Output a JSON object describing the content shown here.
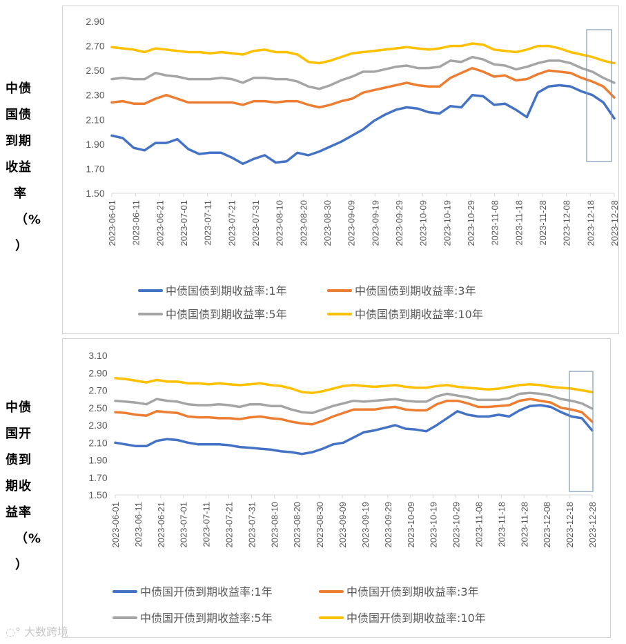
{
  "chart_data": [
    {
      "type": "line",
      "ylabel_lines": [
        "中债",
        "国债",
        "到期",
        "收益",
        "率",
        "（%",
        "）"
      ],
      "ylim": [
        1.5,
        2.9
      ],
      "yticks": [
        "2.90",
        "2.70",
        "2.50",
        "2.30",
        "2.10",
        "1.90",
        "1.70",
        "1.50"
      ],
      "xticks": [
        "2023-06-01",
        "2023-06-11",
        "2023-06-21",
        "2023-07-01",
        "2023-07-11",
        "2023-07-21",
        "2023-07-31",
        "2023-08-10",
        "2023-08-20",
        "2023-08-30",
        "2023-09-09",
        "2023-09-19",
        "2023-09-29",
        "2023-10-09",
        "2023-10-19",
        "2023-10-29",
        "2023-11-08",
        "2023-11-18",
        "2023-11-28",
        "2023-12-08",
        "2023-12-18",
        "2023-12-28"
      ],
      "series": [
        {
          "name": "中债国债到期收益率:1年",
          "color": "#4472C4",
          "values": [
            1.97,
            1.95,
            1.87,
            1.85,
            1.91,
            1.91,
            1.94,
            1.86,
            1.82,
            1.83,
            1.83,
            1.79,
            1.74,
            1.78,
            1.81,
            1.75,
            1.76,
            1.83,
            1.81,
            1.84,
            1.88,
            1.92,
            1.97,
            2.02,
            2.09,
            2.14,
            2.18,
            2.2,
            2.19,
            2.16,
            2.15,
            2.21,
            2.2,
            2.3,
            2.29,
            2.22,
            2.23,
            2.18,
            2.12,
            2.32,
            2.37,
            2.38,
            2.37,
            2.33,
            2.3,
            2.24,
            2.11
          ]
        },
        {
          "name": "中债国债到期收益率:3年",
          "color": "#ED7D31",
          "values": [
            2.24,
            2.25,
            2.23,
            2.23,
            2.27,
            2.3,
            2.27,
            2.24,
            2.24,
            2.24,
            2.24,
            2.24,
            2.22,
            2.25,
            2.25,
            2.24,
            2.25,
            2.25,
            2.22,
            2.2,
            2.22,
            2.25,
            2.27,
            2.32,
            2.34,
            2.36,
            2.38,
            2.4,
            2.38,
            2.37,
            2.37,
            2.44,
            2.48,
            2.52,
            2.49,
            2.45,
            2.46,
            2.42,
            2.43,
            2.47,
            2.5,
            2.49,
            2.48,
            2.44,
            2.41,
            2.37,
            2.28
          ]
        },
        {
          "name": "中债国债到期收益率:5年",
          "color": "#A5A5A5",
          "values": [
            2.43,
            2.44,
            2.43,
            2.43,
            2.48,
            2.46,
            2.45,
            2.43,
            2.43,
            2.43,
            2.44,
            2.43,
            2.4,
            2.44,
            2.44,
            2.43,
            2.43,
            2.41,
            2.37,
            2.35,
            2.38,
            2.42,
            2.45,
            2.49,
            2.49,
            2.51,
            2.53,
            2.54,
            2.52,
            2.52,
            2.53,
            2.58,
            2.57,
            2.61,
            2.59,
            2.55,
            2.54,
            2.51,
            2.53,
            2.56,
            2.58,
            2.58,
            2.56,
            2.52,
            2.49,
            2.44,
            2.4
          ]
        },
        {
          "name": "中债国债到期收益率:10年",
          "color": "#FFC000",
          "values": [
            2.69,
            2.68,
            2.67,
            2.65,
            2.68,
            2.67,
            2.66,
            2.65,
            2.65,
            2.64,
            2.65,
            2.64,
            2.63,
            2.66,
            2.67,
            2.65,
            2.65,
            2.63,
            2.57,
            2.56,
            2.58,
            2.61,
            2.64,
            2.65,
            2.66,
            2.67,
            2.68,
            2.69,
            2.68,
            2.67,
            2.68,
            2.7,
            2.7,
            2.72,
            2.71,
            2.67,
            2.66,
            2.65,
            2.67,
            2.7,
            2.7,
            2.68,
            2.65,
            2.63,
            2.61,
            2.58,
            2.56
          ]
        }
      ]
    },
    {
      "type": "line",
      "ylabel_lines": [
        "中债",
        "国开",
        "债到",
        "期收",
        "益率",
        "（%",
        "）"
      ],
      "ylim": [
        1.5,
        3.1
      ],
      "yticks": [
        "3.10",
        "2.90",
        "2.70",
        "2.50",
        "2.30",
        "2.10",
        "1.90",
        "1.70",
        "1.50"
      ],
      "xticks": [
        "2023-06-01",
        "2023-06-11",
        "2023-06-21",
        "2023-07-01",
        "2023-07-11",
        "2023-07-21",
        "2023-07-31",
        "2023-08-10",
        "2023-08-20",
        "2023-08-30",
        "2023-09-09",
        "2023-09-19",
        "2023-09-29",
        "2023-10-09",
        "2023-10-19",
        "2023-10-29",
        "2023-11-08",
        "2023-11-18",
        "2023-11-28",
        "2023-12-08",
        "2023-12-18",
        "2023-12-28"
      ],
      "series": [
        {
          "name": "中债国开债到期收益率:1年",
          "color": "#4472C4",
          "values": [
            2.1,
            2.08,
            2.06,
            2.06,
            2.12,
            2.14,
            2.13,
            2.1,
            2.08,
            2.08,
            2.08,
            2.07,
            2.05,
            2.04,
            2.03,
            2.02,
            2.0,
            1.99,
            1.97,
            1.99,
            2.03,
            2.08,
            2.1,
            2.16,
            2.22,
            2.24,
            2.27,
            2.3,
            2.26,
            2.25,
            2.23,
            2.3,
            2.38,
            2.46,
            2.42,
            2.4,
            2.4,
            2.42,
            2.4,
            2.47,
            2.52,
            2.53,
            2.51,
            2.45,
            2.4,
            2.38,
            2.24
          ]
        },
        {
          "name": "中债国开债到期收益率:3年",
          "color": "#ED7D31",
          "values": [
            2.45,
            2.44,
            2.42,
            2.41,
            2.46,
            2.45,
            2.44,
            2.4,
            2.39,
            2.39,
            2.38,
            2.38,
            2.37,
            2.39,
            2.4,
            2.38,
            2.37,
            2.34,
            2.32,
            2.31,
            2.35,
            2.4,
            2.44,
            2.48,
            2.48,
            2.48,
            2.5,
            2.51,
            2.48,
            2.47,
            2.47,
            2.54,
            2.58,
            2.58,
            2.55,
            2.51,
            2.51,
            2.52,
            2.53,
            2.58,
            2.6,
            2.58,
            2.56,
            2.5,
            2.48,
            2.45,
            2.34
          ]
        },
        {
          "name": "中债国开债到期收益率:5年",
          "color": "#A5A5A5",
          "values": [
            2.58,
            2.57,
            2.56,
            2.54,
            2.6,
            2.58,
            2.57,
            2.54,
            2.53,
            2.53,
            2.54,
            2.53,
            2.51,
            2.54,
            2.54,
            2.52,
            2.52,
            2.48,
            2.45,
            2.44,
            2.48,
            2.52,
            2.55,
            2.58,
            2.57,
            2.58,
            2.59,
            2.6,
            2.58,
            2.57,
            2.57,
            2.63,
            2.66,
            2.64,
            2.62,
            2.59,
            2.59,
            2.59,
            2.61,
            2.66,
            2.67,
            2.66,
            2.64,
            2.6,
            2.58,
            2.55,
            2.49
          ]
        },
        {
          "name": "中债国开债到期收益率:10年",
          "color": "#FFC000",
          "values": [
            2.84,
            2.83,
            2.81,
            2.79,
            2.82,
            2.8,
            2.8,
            2.78,
            2.78,
            2.77,
            2.78,
            2.77,
            2.76,
            2.77,
            2.78,
            2.76,
            2.75,
            2.72,
            2.68,
            2.67,
            2.69,
            2.72,
            2.75,
            2.76,
            2.75,
            2.74,
            2.75,
            2.76,
            2.74,
            2.73,
            2.73,
            2.75,
            2.76,
            2.74,
            2.73,
            2.72,
            2.71,
            2.72,
            2.74,
            2.76,
            2.77,
            2.76,
            2.74,
            2.73,
            2.72,
            2.7,
            2.68
          ]
        }
      ]
    }
  ],
  "watermark": "大数跨境"
}
